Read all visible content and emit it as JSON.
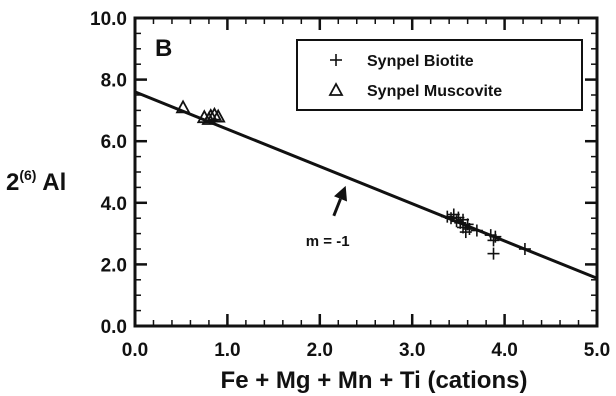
{
  "chart_data": {
    "type": "scatter",
    "panel_label": "B",
    "xlabel": "Fe + Mg + Mn + Ti (cations)",
    "ylabel": {
      "main": "2",
      "sup": "(6)",
      "tail": " Al"
    },
    "xlim": [
      0.0,
      5.0
    ],
    "ylim": [
      0.0,
      10.0
    ],
    "x_ticks": [
      0.0,
      1.0,
      2.0,
      3.0,
      4.0,
      5.0
    ],
    "x_tick_labels": [
      "0.0",
      "1.0",
      "2.0",
      "3.0",
      "4.0",
      "5.0"
    ],
    "y_ticks": [
      0.0,
      2.0,
      4.0,
      6.0,
      8.0,
      10.0
    ],
    "y_tick_labels": [
      "0.0",
      "2.0",
      "4.0",
      "6.0",
      "8.0",
      "10.0"
    ],
    "minor_tick_step_x": 0.2,
    "minor_tick_step_y": 0.5,
    "grid": false,
    "legend_position": "top-right",
    "series": [
      {
        "name": "Synpel Biotite",
        "marker": "plus",
        "points": [
          [
            3.38,
            3.55
          ],
          [
            3.42,
            3.5
          ],
          [
            3.45,
            3.62
          ],
          [
            3.48,
            3.4
          ],
          [
            3.5,
            3.52
          ],
          [
            3.52,
            3.35
          ],
          [
            3.55,
            3.45
          ],
          [
            3.55,
            3.2
          ],
          [
            3.58,
            3.05
          ],
          [
            3.6,
            3.3
          ],
          [
            3.62,
            3.15
          ],
          [
            3.7,
            3.1
          ],
          [
            3.85,
            2.95
          ],
          [
            3.88,
            2.78
          ],
          [
            3.9,
            2.9
          ],
          [
            3.88,
            2.35
          ],
          [
            4.22,
            2.5
          ]
        ]
      },
      {
        "name": "Synpel Muscovite",
        "marker": "triangle",
        "points": [
          [
            0.52,
            7.1
          ],
          [
            0.75,
            6.78
          ],
          [
            0.8,
            6.72
          ],
          [
            0.82,
            6.82
          ],
          [
            0.86,
            6.86
          ],
          [
            0.9,
            6.8
          ]
        ]
      }
    ],
    "reference_line": {
      "x": [
        0.0,
        5.0
      ],
      "y": [
        7.6,
        1.55
      ]
    },
    "annotation": {
      "text": "m = -1",
      "x": 2.0,
      "y": 2.8,
      "arrow_to": [
        2.28,
        4.55
      ]
    }
  }
}
